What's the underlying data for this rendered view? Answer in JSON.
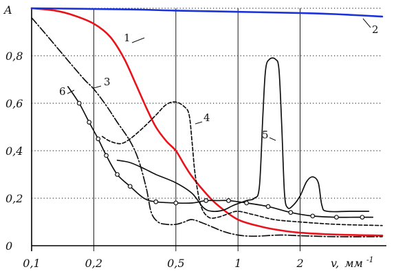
{
  "chart_data": {
    "type": "line",
    "ylabel": "A",
    "xlabel_prefix": "v,",
    "xlabel_unit": "мм",
    "xlabel_exp": "-1",
    "x_scale": "log",
    "xlim": [
      0.1,
      5
    ],
    "ylim": [
      0,
      1.0
    ],
    "x_ticks": [
      {
        "value": 0.1,
        "label": "0,1"
      },
      {
        "value": 0.2,
        "label": "0,2"
      },
      {
        "value": 0.5,
        "label": "0,5"
      },
      {
        "value": 1,
        "label": "1"
      },
      {
        "value": 2,
        "label": "2"
      }
    ],
    "y_ticks": [
      {
        "value": 0,
        "label": "0"
      },
      {
        "value": 0.2,
        "label": "0,2"
      },
      {
        "value": 0.4,
        "label": "0,4"
      },
      {
        "value": 0.6,
        "label": "0,6"
      },
      {
        "value": 0.8,
        "label": "0,8"
      }
    ],
    "grid": true,
    "series": [
      {
        "label": "1",
        "color": "#e8131b",
        "style": "solid",
        "markers": false,
        "points": [
          [
            0.1,
            1.0
          ],
          [
            0.13,
            0.99
          ],
          [
            0.16,
            0.97
          ],
          [
            0.2,
            0.935
          ],
          [
            0.24,
            0.88
          ],
          [
            0.28,
            0.79
          ],
          [
            0.32,
            0.68
          ],
          [
            0.36,
            0.58
          ],
          [
            0.4,
            0.5
          ],
          [
            0.45,
            0.44
          ],
          [
            0.5,
            0.4
          ],
          [
            0.55,
            0.34
          ],
          [
            0.6,
            0.29
          ],
          [
            0.7,
            0.22
          ],
          [
            0.8,
            0.17
          ],
          [
            1.0,
            0.11
          ],
          [
            1.3,
            0.08
          ],
          [
            1.6,
            0.065
          ],
          [
            2.0,
            0.055
          ],
          [
            3.0,
            0.047
          ],
          [
            5.0,
            0.043
          ]
        ]
      },
      {
        "label": "2",
        "color": "#1a32d6",
        "style": "solid",
        "markers": false,
        "points": [
          [
            0.1,
            1.0
          ],
          [
            0.3,
            0.995
          ],
          [
            0.5,
            0.99
          ],
          [
            1.0,
            0.985
          ],
          [
            2.0,
            0.98
          ],
          [
            3.0,
            0.975
          ],
          [
            5.0,
            0.965
          ]
        ]
      },
      {
        "label": "3",
        "color": "#111111",
        "style": "dashdot",
        "markers": false,
        "points": [
          [
            0.1,
            0.96
          ],
          [
            0.12,
            0.88
          ],
          [
            0.15,
            0.78
          ],
          [
            0.18,
            0.7
          ],
          [
            0.2,
            0.66
          ],
          [
            0.23,
            0.59
          ],
          [
            0.26,
            0.52
          ],
          [
            0.3,
            0.44
          ],
          [
            0.33,
            0.36
          ],
          [
            0.36,
            0.24
          ],
          [
            0.38,
            0.14
          ],
          [
            0.41,
            0.1
          ],
          [
            0.45,
            0.09
          ],
          [
            0.5,
            0.09
          ],
          [
            0.55,
            0.1
          ],
          [
            0.6,
            0.11
          ],
          [
            0.7,
            0.09
          ],
          [
            0.85,
            0.06
          ],
          [
            1.0,
            0.045
          ],
          [
            1.2,
            0.04
          ],
          [
            1.6,
            0.045
          ],
          [
            2.0,
            0.042
          ],
          [
            3.0,
            0.038
          ],
          [
            5.0,
            0.038
          ]
        ]
      },
      {
        "label": "4",
        "color": "#111111",
        "style": "dashed",
        "markers": false,
        "points": [
          [
            0.22,
            0.46
          ],
          [
            0.24,
            0.44
          ],
          [
            0.27,
            0.43
          ],
          [
            0.3,
            0.45
          ],
          [
            0.35,
            0.5
          ],
          [
            0.4,
            0.55
          ],
          [
            0.45,
            0.595
          ],
          [
            0.5,
            0.605
          ],
          [
            0.55,
            0.585
          ],
          [
            0.58,
            0.55
          ],
          [
            0.6,
            0.43
          ],
          [
            0.62,
            0.3
          ],
          [
            0.66,
            0.17
          ],
          [
            0.72,
            0.12
          ],
          [
            0.8,
            0.12
          ],
          [
            0.9,
            0.135
          ],
          [
            1.0,
            0.145
          ],
          [
            1.2,
            0.13
          ],
          [
            1.5,
            0.11
          ],
          [
            2.0,
            0.1
          ],
          [
            3.0,
            0.09
          ],
          [
            5.0,
            0.085
          ]
        ]
      },
      {
        "label": "5",
        "color": "#111111",
        "style": "solid",
        "markers": false,
        "points": [
          [
            0.26,
            0.36
          ],
          [
            0.3,
            0.35
          ],
          [
            0.35,
            0.325
          ],
          [
            0.4,
            0.3
          ],
          [
            0.5,
            0.265
          ],
          [
            0.6,
            0.22
          ],
          [
            0.68,
            0.16
          ],
          [
            0.75,
            0.145
          ],
          [
            0.85,
            0.15
          ],
          [
            0.95,
            0.17
          ],
          [
            1.1,
            0.19
          ],
          [
            1.2,
            0.2
          ],
          [
            1.27,
            0.25
          ],
          [
            1.32,
            0.55
          ],
          [
            1.36,
            0.74
          ],
          [
            1.42,
            0.785
          ],
          [
            1.52,
            0.785
          ],
          [
            1.58,
            0.74
          ],
          [
            1.63,
            0.5
          ],
          [
            1.68,
            0.22
          ],
          [
            1.74,
            0.16
          ],
          [
            1.85,
            0.17
          ],
          [
            2.0,
            0.21
          ],
          [
            2.15,
            0.27
          ],
          [
            2.3,
            0.29
          ],
          [
            2.45,
            0.265
          ],
          [
            2.55,
            0.17
          ],
          [
            2.7,
            0.145
          ],
          [
            3.5,
            0.145
          ],
          [
            4.3,
            0.145
          ]
        ]
      },
      {
        "label": "6",
        "color": "#111111",
        "style": "solid",
        "markers": true,
        "points": [
          [
            0.15,
            0.67
          ],
          [
            0.17,
            0.6
          ],
          [
            0.19,
            0.52
          ],
          [
            0.21,
            0.45
          ],
          [
            0.23,
            0.38
          ],
          [
            0.26,
            0.3
          ],
          [
            0.3,
            0.25
          ],
          [
            0.35,
            0.2
          ],
          [
            0.4,
            0.185
          ],
          [
            0.5,
            0.18
          ],
          [
            0.6,
            0.18
          ],
          [
            0.7,
            0.19
          ],
          [
            0.8,
            0.19
          ],
          [
            0.9,
            0.19
          ],
          [
            1.1,
            0.18
          ],
          [
            1.4,
            0.165
          ],
          [
            1.8,
            0.14
          ],
          [
            2.3,
            0.125
          ],
          [
            3.0,
            0.12
          ],
          [
            4.0,
            0.12
          ],
          [
            4.5,
            0.12
          ]
        ],
        "marker_points": [
          [
            0.17,
            0.6
          ],
          [
            0.19,
            0.52
          ],
          [
            0.21,
            0.45
          ],
          [
            0.23,
            0.38
          ],
          [
            0.26,
            0.3
          ],
          [
            0.3,
            0.25
          ],
          [
            0.4,
            0.185
          ],
          [
            0.5,
            0.18
          ],
          [
            0.7,
            0.19
          ],
          [
            0.9,
            0.19
          ],
          [
            1.1,
            0.18
          ],
          [
            1.4,
            0.165
          ],
          [
            1.8,
            0.14
          ],
          [
            2.3,
            0.125
          ],
          [
            3.0,
            0.12
          ],
          [
            4.0,
            0.12
          ]
        ]
      }
    ]
  }
}
